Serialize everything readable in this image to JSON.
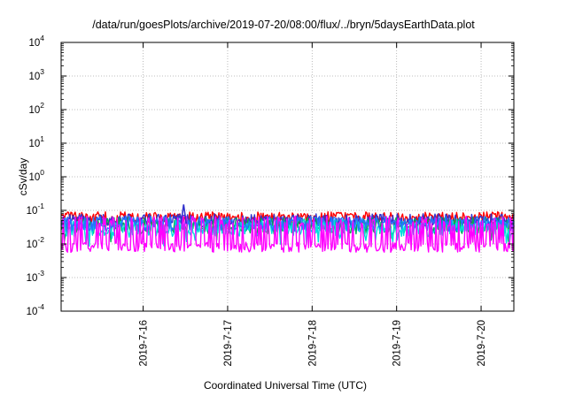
{
  "chart_data": {
    "type": "line",
    "title": "/data/run/goesPlots/archive/2019-07-20/08:00/flux/../bryn/5daysEarthData.plot",
    "xlabel": "Coordinated Universal Time (UTC)",
    "ylabel": "cSv/day",
    "yscale": "log",
    "ylim": [
      0.0001,
      10000
    ],
    "y_ticks": [
      {
        "value": 0.0001,
        "base": "10",
        "exp": "-4"
      },
      {
        "value": 0.001,
        "base": "10",
        "exp": "-3"
      },
      {
        "value": 0.01,
        "base": "10",
        "exp": "-2"
      },
      {
        "value": 0.1,
        "base": "10",
        "exp": "-1"
      },
      {
        "value": 1,
        "base": "10",
        "exp": "0"
      },
      {
        "value": 10,
        "base": "10",
        "exp": "1"
      },
      {
        "value": 100,
        "base": "10",
        "exp": "2"
      },
      {
        "value": 1000,
        "base": "10",
        "exp": "3"
      },
      {
        "value": 10000,
        "base": "10",
        "exp": "4"
      }
    ],
    "xlim": [
      "2019-07-15 00:42",
      "2019-07-20 09:18"
    ],
    "x_ticks": [
      {
        "value": "2019-07-16 00:00",
        "label": "2019-7-16"
      },
      {
        "value": "2019-07-17 00:00",
        "label": "2019-7-17"
      },
      {
        "value": "2019-07-18 00:00",
        "label": "2019-7-18"
      },
      {
        "value": "2019-07-19 00:00",
        "label": "2019-7-19"
      },
      {
        "value": "2019-07-20 00:00",
        "label": "2019-7-20"
      }
    ],
    "grid": true,
    "legend": "none",
    "series": [
      {
        "color": "#ff0000",
        "mean": 0.06,
        "spread": 0.18,
        "spike_prob": 0.0,
        "spike_factor": 1
      },
      {
        "color": "#3333cc",
        "mean": 0.05,
        "spread": 0.2,
        "spike_prob": 0.0,
        "spike_factor": 1
      },
      {
        "color": "#00aa55",
        "mean": 0.035,
        "spread": 0.25,
        "spike_prob": 0.05,
        "spike_factor": 0.55
      },
      {
        "color": "#00dddd",
        "mean": 0.03,
        "spread": 0.25,
        "spike_prob": 0.08,
        "spike_factor": 0.5
      },
      {
        "color": "#2277ff",
        "mean": 0.04,
        "spread": 0.22,
        "spike_prob": 0.0,
        "spike_factor": 1
      },
      {
        "color": "#ff00ff",
        "mean": 0.008,
        "spread": 0.15,
        "spike_prob": 0.38,
        "spike_factor": 6
      }
    ],
    "notable_points": [
      {
        "x": "2019-07-16 11:30",
        "y": 0.15,
        "series_color": "#3333cc"
      }
    ]
  }
}
